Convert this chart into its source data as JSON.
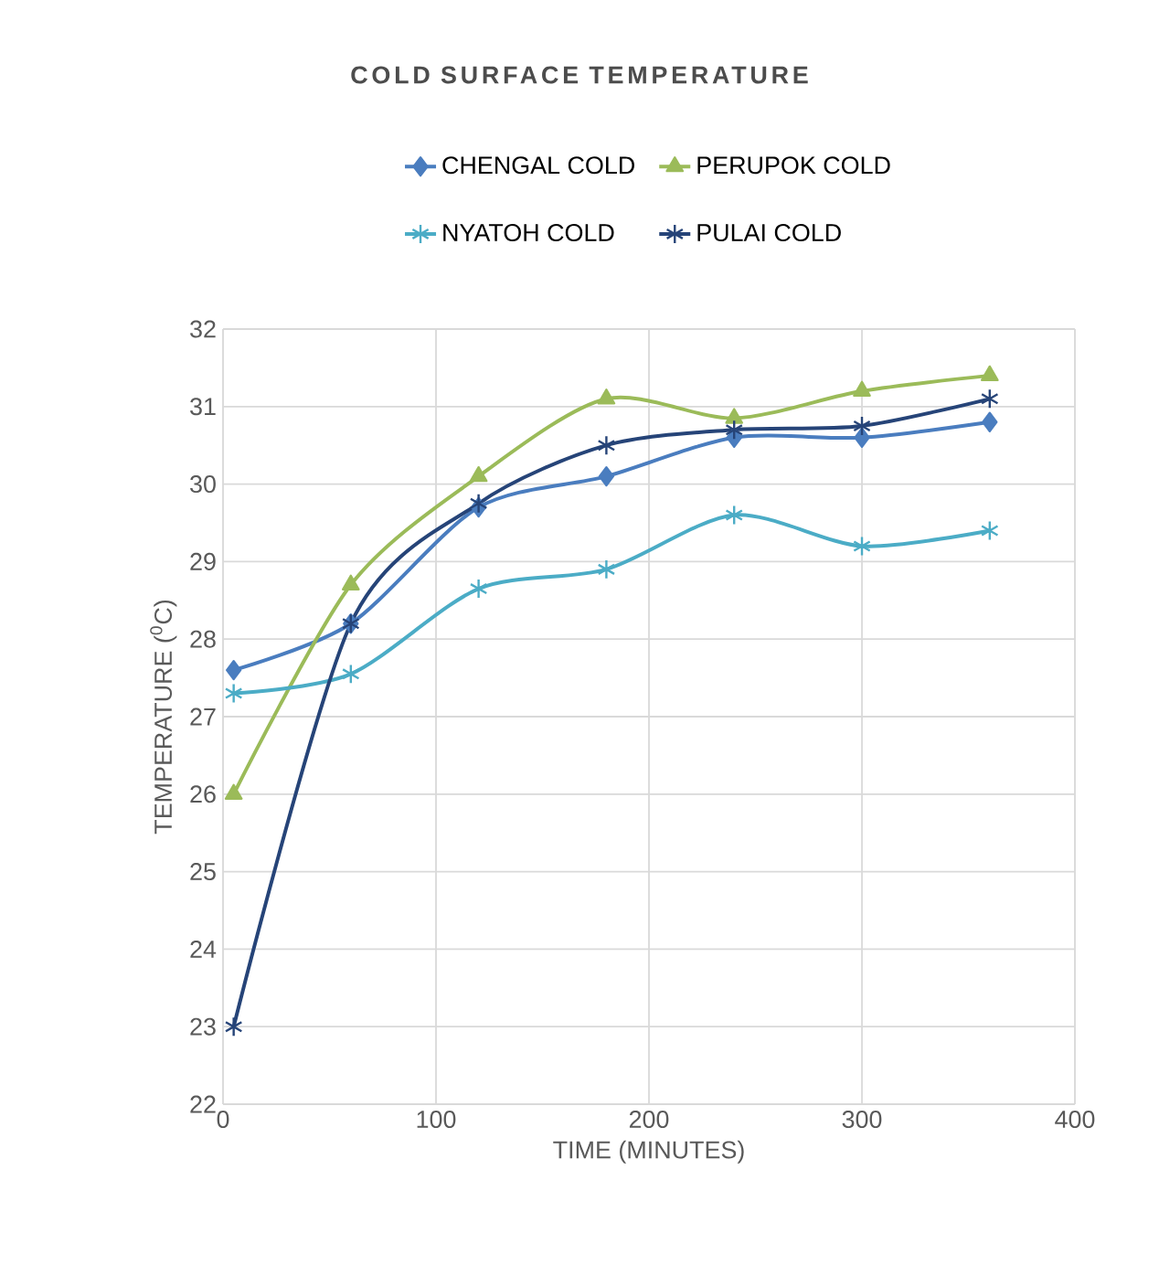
{
  "chart_data": {
    "type": "line",
    "title": "COLD SURFACE TEMPERATURE",
    "xlabel": "TIME (MINUTES)",
    "ylabel": "TEMPERATURE ($^{0}$C)",
    "x": [
      5,
      60,
      120,
      180,
      240,
      300,
      360
    ],
    "series": [
      {
        "name": "CHENGAL COLD",
        "color": "#4a7dbf",
        "marker": "diamond",
        "values": [
          27.6,
          28.2,
          29.7,
          30.1,
          30.6,
          30.6,
          30.8
        ]
      },
      {
        "name": "PERUPOK COLD",
        "color": "#9bbb59",
        "marker": "triangle",
        "values": [
          26.0,
          28.7,
          30.1,
          31.1,
          30.85,
          31.2,
          31.4
        ]
      },
      {
        "name": "NYATOH COLD",
        "color": "#4bacc6",
        "marker": "cross",
        "values": [
          27.3,
          27.55,
          28.65,
          28.9,
          29.6,
          29.2,
          29.4
        ]
      },
      {
        "name": "PULAI COLD",
        "color": "#264478",
        "marker": "cross",
        "values": [
          23.0,
          28.2,
          29.75,
          30.5,
          30.7,
          30.75,
          31.1
        ]
      }
    ],
    "xlim": [
      0,
      400
    ],
    "ylim": [
      22,
      32
    ],
    "xticks": [
      0,
      100,
      200,
      300,
      400
    ],
    "yticks": [
      22,
      23,
      24,
      25,
      26,
      27,
      28,
      29,
      30,
      31,
      32
    ],
    "grid": true,
    "legend": "top",
    "line_style": "solid"
  }
}
